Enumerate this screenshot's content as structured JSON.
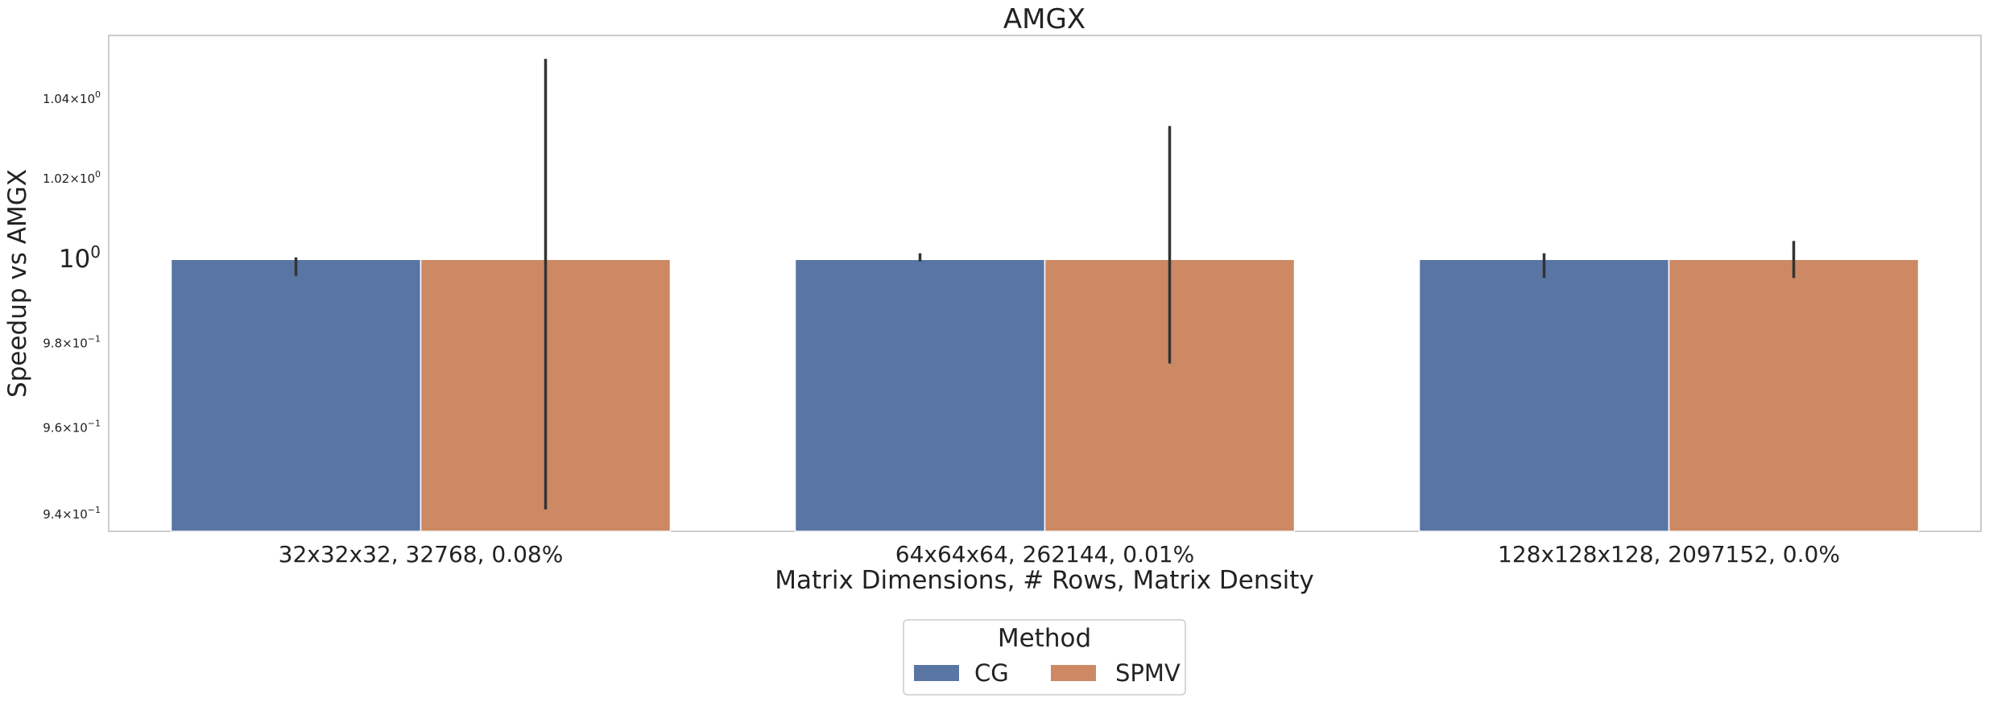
{
  "chart_data": {
    "type": "bar",
    "title": "AMGX",
    "xlabel": "Matrix Dimensions, # Rows, Matrix Density",
    "ylabel": "Speedup vs AMGX",
    "yscale": "log",
    "ylim": [
      0.936,
      1.056
    ],
    "grid": false,
    "categories": [
      "32x32x32, 32768, 0.08%",
      "64x64x64, 262144, 0.01%",
      "128x128x128, 2097152, 0.0%"
    ],
    "yticks": [
      {
        "value": 0.94,
        "mantissa": "9.4",
        "exp": "−1"
      },
      {
        "value": 0.96,
        "mantissa": "9.6",
        "exp": "−1"
      },
      {
        "value": 0.98,
        "mantissa": "9.8",
        "exp": "−1"
      },
      {
        "value": 1.0,
        "mantissa": "",
        "exp": "0"
      },
      {
        "value": 1.02,
        "mantissa": "1.02",
        "exp": "0"
      },
      {
        "value": 1.04,
        "mantissa": "1.04",
        "exp": "0"
      }
    ],
    "series": [
      {
        "name": "CG",
        "color": "#5975a4",
        "values": [
          1.0,
          1.0,
          1.0
        ],
        "error_low": [
          0.996,
          0.9995,
          0.9955
        ],
        "error_high": [
          1.0005,
          1.0015,
          1.0015
        ]
      },
      {
        "name": "SPMV",
        "color": "#cc8963",
        "values": [
          1.0,
          1.0,
          1.0
        ],
        "error_low": [
          0.941,
          0.975,
          0.9955
        ],
        "error_high": [
          1.05,
          1.033,
          1.0045
        ]
      }
    ],
    "legend": {
      "title": "Method",
      "placement": "bottom-center"
    }
  }
}
